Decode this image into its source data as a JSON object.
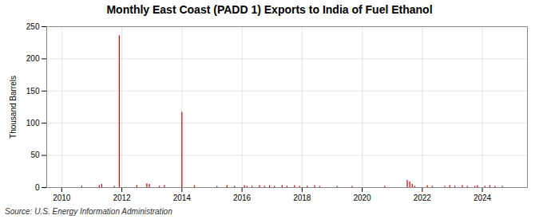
{
  "chart_data": {
    "type": "stem",
    "title": "Monthly East Coast (PADD 1) Exports to India of Fuel Ethanol",
    "ylabel": "Thousand Barrels",
    "source": "Source: U.S. Energy Information Administration",
    "color": "#cc0000",
    "grid": true,
    "xlim": [
      2009.5,
      2025.5
    ],
    "xticks": [
      2010,
      2012,
      2014,
      2016,
      2018,
      2020,
      2022,
      2024
    ],
    "ylim": [
      0,
      250
    ],
    "yticks": [
      0,
      50,
      100,
      150,
      200,
      250
    ],
    "x": [
      2010.0,
      2010.083,
      2010.167,
      2010.25,
      2010.333,
      2010.417,
      2010.5,
      2010.583,
      2010.667,
      2010.75,
      2010.833,
      2010.917,
      2011.0,
      2011.083,
      2011.167,
      2011.25,
      2011.333,
      2011.417,
      2011.5,
      2011.583,
      2011.667,
      2011.75,
      2011.833,
      2011.917,
      2012.0,
      2012.083,
      2012.167,
      2012.25,
      2012.333,
      2012.417,
      2012.5,
      2012.583,
      2012.667,
      2012.75,
      2012.833,
      2012.917,
      2013.0,
      2013.083,
      2013.167,
      2013.25,
      2013.333,
      2013.417,
      2013.5,
      2013.583,
      2013.667,
      2013.75,
      2013.833,
      2013.917,
      2014.0,
      2014.083,
      2014.167,
      2014.25,
      2014.333,
      2014.417,
      2014.5,
      2014.583,
      2014.667,
      2014.75,
      2014.833,
      2014.917,
      2015.0,
      2015.083,
      2015.167,
      2015.25,
      2015.333,
      2015.417,
      2015.5,
      2015.583,
      2015.667,
      2015.75,
      2015.833,
      2015.917,
      2016.0,
      2016.083,
      2016.167,
      2016.25,
      2016.333,
      2016.417,
      2016.5,
      2016.583,
      2016.667,
      2016.75,
      2016.833,
      2016.917,
      2017.0,
      2017.083,
      2017.167,
      2017.25,
      2017.333,
      2017.417,
      2017.5,
      2017.583,
      2017.667,
      2017.75,
      2017.833,
      2017.917,
      2018.0,
      2018.083,
      2018.167,
      2018.25,
      2018.333,
      2018.417,
      2018.5,
      2018.583,
      2018.667,
      2018.75,
      2018.833,
      2018.917,
      2019.0,
      2019.083,
      2019.167,
      2019.25,
      2019.333,
      2019.417,
      2019.5,
      2019.583,
      2019.667,
      2019.75,
      2019.833,
      2019.917,
      2020.0,
      2020.083,
      2020.167,
      2020.25,
      2020.333,
      2020.417,
      2020.5,
      2020.583,
      2020.667,
      2020.75,
      2020.833,
      2020.917,
      2021.0,
      2021.083,
      2021.167,
      2021.25,
      2021.333,
      2021.417,
      2021.5,
      2021.583,
      2021.667,
      2021.75,
      2021.833,
      2021.917,
      2022.0,
      2022.083,
      2022.167,
      2022.25,
      2022.333,
      2022.417,
      2022.5,
      2022.583,
      2022.667,
      2022.75,
      2022.833,
      2022.917,
      2023.0,
      2023.083,
      2023.167,
      2023.25,
      2023.333,
      2023.417,
      2023.5,
      2023.583,
      2023.667,
      2023.75,
      2023.833,
      2023.917,
      2024.0,
      2024.083,
      2024.167,
      2024.25,
      2024.333,
      2024.417,
      2024.5,
      2024.583,
      2024.667,
      2024.75,
      2024.833,
      2024.917
    ],
    "values": [
      0,
      0,
      0,
      0,
      0,
      0,
      0,
      0,
      2,
      0,
      0,
      0,
      0,
      0,
      0,
      3,
      5,
      0,
      0,
      0,
      0,
      2,
      0,
      236,
      0,
      0,
      0,
      0,
      0,
      0,
      3,
      0,
      0,
      0,
      6,
      5,
      0,
      0,
      0,
      2,
      0,
      3,
      0,
      0,
      0,
      0,
      0,
      0,
      117,
      0,
      0,
      0,
      0,
      3,
      0,
      0,
      0,
      0,
      0,
      0,
      0,
      0,
      2,
      0,
      0,
      0,
      3,
      0,
      0,
      2,
      0,
      0,
      0,
      3,
      2,
      0,
      2,
      0,
      0,
      3,
      0,
      2,
      0,
      3,
      0,
      2,
      0,
      0,
      3,
      0,
      2,
      0,
      0,
      3,
      0,
      2,
      0,
      0,
      2,
      0,
      0,
      3,
      0,
      2,
      0,
      0,
      0,
      0,
      0,
      0,
      2,
      0,
      0,
      0,
      0,
      0,
      2,
      0,
      0,
      0,
      0,
      0,
      0,
      0,
      0,
      0,
      0,
      0,
      0,
      2,
      0,
      0,
      0,
      0,
      0,
      0,
      0,
      0,
      11,
      9,
      5,
      2,
      0,
      0,
      0,
      0,
      3,
      0,
      2,
      0,
      0,
      0,
      0,
      2,
      0,
      3,
      0,
      2,
      0,
      0,
      3,
      0,
      2,
      0,
      0,
      2,
      3,
      0,
      0,
      2,
      0,
      3,
      0,
      2,
      0,
      0,
      2,
      0,
      0,
      0
    ]
  }
}
